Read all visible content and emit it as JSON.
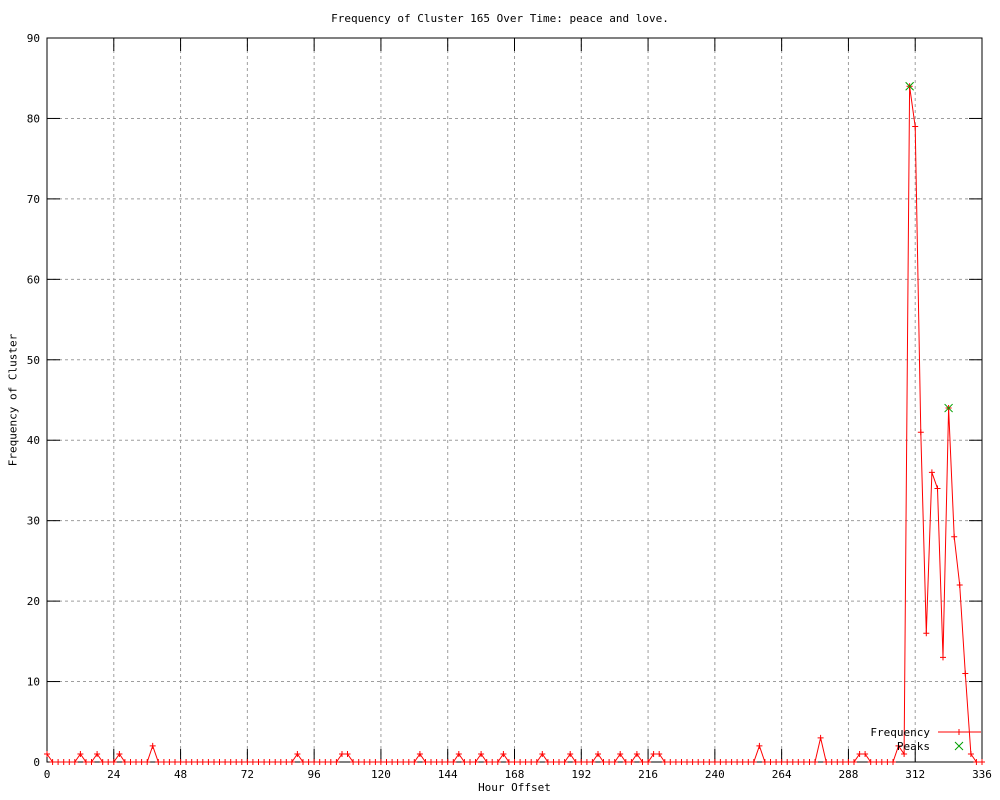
{
  "chart_data": {
    "type": "line",
    "title": "Frequency of Cluster 165 Over Time: peace and love.",
    "xlabel": "Hour Offset",
    "ylabel": "Frequency of Cluster",
    "xlim": [
      0,
      336
    ],
    "ylim": [
      0,
      90
    ],
    "xticks": [
      0,
      24,
      48,
      72,
      96,
      120,
      144,
      168,
      192,
      216,
      240,
      264,
      288,
      312,
      336
    ],
    "yticks": [
      0,
      10,
      20,
      30,
      40,
      50,
      60,
      70,
      80,
      90
    ],
    "grid": true,
    "grid_color": "#9e9e9e",
    "legend_position": "bottom-right-inside",
    "series": [
      {
        "name": "Frequency",
        "color": "#ff0000",
        "marker": "plus",
        "x_start": 0,
        "x_step": 2,
        "values": [
          1,
          0,
          0,
          0,
          0,
          0,
          1,
          0,
          0,
          1,
          0,
          0,
          0,
          1,
          0,
          0,
          0,
          0,
          0,
          2,
          0,
          0,
          0,
          0,
          0,
          0,
          0,
          0,
          0,
          0,
          0,
          0,
          0,
          0,
          0,
          0,
          0,
          0,
          0,
          0,
          0,
          0,
          0,
          0,
          0,
          1,
          0,
          0,
          0,
          0,
          0,
          0,
          0,
          1,
          1,
          0,
          0,
          0,
          0,
          0,
          0,
          0,
          0,
          0,
          0,
          0,
          0,
          1,
          0,
          0,
          0,
          0,
          0,
          0,
          1,
          0,
          0,
          0,
          1,
          0,
          0,
          0,
          1,
          0,
          0,
          0,
          0,
          0,
          0,
          1,
          0,
          0,
          0,
          0,
          1,
          0,
          0,
          0,
          0,
          1,
          0,
          0,
          0,
          1,
          0,
          0,
          1,
          0,
          0,
          1,
          1,
          0,
          0,
          0,
          0,
          0,
          0,
          0,
          0,
          0,
          0,
          0,
          0,
          0,
          0,
          0,
          0,
          0,
          2,
          0,
          0,
          0,
          0,
          0,
          0,
          0,
          0,
          0,
          0,
          3,
          0,
          0,
          0,
          0,
          0,
          0,
          1,
          1,
          0,
          0,
          0,
          0,
          0,
          2,
          1,
          84,
          79,
          41,
          16,
          36,
          34,
          13,
          44,
          28,
          22,
          11,
          1,
          0,
          0
        ]
      },
      {
        "name": "Peaks",
        "color": "#00a000",
        "marker": "cross",
        "points": [
          [
            310,
            84
          ],
          [
            324,
            44
          ]
        ]
      }
    ]
  }
}
